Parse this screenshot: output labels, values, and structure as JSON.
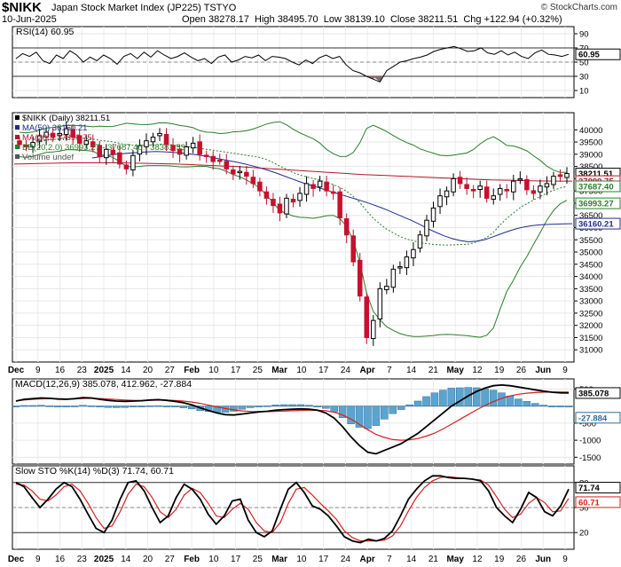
{
  "header": {
    "symbol": "$NIKK",
    "name": "Japan Stock Market Index (JP225)  TSTYO",
    "date": "10-Jun-2025",
    "credit": "© StockCharts.com",
    "open_label": "Open",
    "open": "38278.17",
    "high_label": "High",
    "high": "38495.70",
    "low_label": "Low",
    "low": "38139.10",
    "close_label": "Close",
    "close": "38211.51",
    "chg_label": "Chg",
    "chg": "+122.94 (+0.32%)"
  },
  "chart_data": [
    {
      "type": "line",
      "panel": "rsi",
      "legend": "RSI(14) 60.95",
      "ylim": [
        0,
        100
      ],
      "yticks": [
        10,
        30,
        50,
        70,
        90
      ],
      "reference_lines": [
        30,
        50,
        70
      ],
      "last_value_label": "60.95",
      "series": [
        {
          "name": "RSI(14)",
          "values": [
            55,
            62,
            58,
            64,
            52,
            48,
            60,
            55,
            66,
            60,
            50,
            57,
            52,
            60,
            55,
            47,
            58,
            62,
            55,
            64,
            57,
            66,
            60,
            55,
            58,
            63,
            57,
            52,
            55,
            48,
            57,
            60,
            50,
            53,
            58,
            56,
            60,
            52,
            58,
            57,
            55,
            50,
            46,
            53,
            48,
            56,
            60,
            55,
            58,
            46,
            38,
            35,
            30,
            26,
            22,
            38,
            44,
            50,
            52,
            55,
            57,
            60,
            65,
            68,
            70,
            72,
            69,
            65,
            66,
            70,
            63,
            61,
            66,
            60,
            64,
            58,
            55,
            63,
            67,
            61,
            60,
            58,
            61
          ]
        }
      ]
    },
    {
      "type": "candlestick",
      "panel": "price",
      "title": "$NIKK (Daily) 38211.51",
      "ylim": [
        30500,
        40700
      ],
      "yticks": [
        31000,
        31500,
        32000,
        32500,
        33000,
        33500,
        34000,
        34500,
        35000,
        35500,
        36000,
        36500,
        37000,
        37500,
        38000,
        38500,
        39000,
        39500,
        40000
      ],
      "x_labels": [
        "Dec",
        "9",
        "16",
        "23",
        "2025",
        "14",
        "20",
        "27",
        "Feb",
        "10",
        "17",
        "25",
        "Mar",
        "10",
        "17",
        "24",
        "Apr",
        "7",
        "14",
        "21",
        "May",
        "12",
        "19",
        "26",
        "Jun",
        "9"
      ],
      "legend": [
        {
          "label": "$NIKK (Daily) 38211.51",
          "color": "#000000"
        },
        {
          "label": "MA(50) 36160.21",
          "color": "#1f2d8c"
        },
        {
          "label": "MA(200) 37899.75",
          "color": "#b3162b"
        },
        {
          "label": "BB(20,2.0) 36993.27 - 37687.40 - 38381.53",
          "color": "#2a7d2a"
        },
        {
          "label": "Volume undef",
          "color": "#555555"
        }
      ],
      "right_labels": [
        {
          "value": 38211.51,
          "label": "38211.51",
          "color": "#000000"
        },
        {
          "value": 37899.75,
          "label": "37899.75",
          "color": "#b3162b"
        },
        {
          "value": 37687.4,
          "label": "37687.40",
          "color": "#2a7d2a"
        },
        {
          "value": 36993.27,
          "label": "36993.27",
          "color": "#2a7d2a"
        },
        {
          "value": 36160.21,
          "label": "36160.21",
          "color": "#1f2d8c"
        }
      ],
      "close": [
        39400,
        39350,
        39480,
        39750,
        39900,
        39700,
        39850,
        40050,
        39700,
        39450,
        39550,
        39300,
        38900,
        39200,
        39000,
        38600,
        38400,
        38950,
        39350,
        39550,
        39700,
        39850,
        39400,
        39150,
        39000,
        39300,
        39450,
        39000,
        38950,
        38700,
        38750,
        38400,
        38200,
        38300,
        38100,
        37800,
        37500,
        37200,
        36900,
        36600,
        37200,
        37050,
        37400,
        37800,
        37600,
        37900,
        37500,
        37400,
        36400,
        35700,
        34600,
        33200,
        31500,
        32200,
        33500,
        33600,
        34300,
        34400,
        34800,
        35100,
        35700,
        36300,
        36800,
        37300,
        37500,
        38000,
        37800,
        37600,
        37500,
        37700,
        37200,
        37300,
        37600,
        37500,
        37900,
        38000,
        37550,
        37400,
        37700,
        37800,
        38100,
        38090,
        38211
      ],
      "ma50": [
        38850,
        38900,
        38950,
        39000,
        39030,
        39060,
        39080,
        39100,
        39110,
        39100,
        39080,
        39060,
        39020,
        38980,
        38930,
        38870,
        38800,
        38740,
        38680,
        38610,
        38530,
        38440,
        38340,
        38230,
        38110,
        37990,
        37870,
        37760,
        37660,
        37560,
        37460,
        37360,
        37260,
        37160,
        37060,
        36950,
        36830,
        36700,
        36560,
        36420,
        36280,
        36120,
        35950,
        35800,
        35660,
        35550,
        35470,
        35420,
        35440,
        35500,
        35610,
        35730,
        35850,
        35950,
        36030,
        36080,
        36110,
        36130,
        36140,
        36150,
        36160
      ],
      "ma200": [
        38600,
        38610,
        38620,
        38630,
        38640,
        38650,
        38650,
        38650,
        38650,
        38650,
        38640,
        38630,
        38620,
        38610,
        38600,
        38580,
        38560,
        38540,
        38520,
        38500,
        38470,
        38440,
        38410,
        38380,
        38350,
        38320,
        38290,
        38260,
        38230,
        38200,
        38170,
        38150,
        38130,
        38110,
        38090,
        38070,
        38050,
        38030,
        38010,
        37990,
        37970,
        37950,
        37940,
        37930,
        37920,
        37910,
        37905,
        37900,
        37900
      ]
    },
    {
      "type": "line",
      "panel": "macd",
      "legend": "MACD(12,26,9) 385.078, 412.962, -27.884",
      "ylim": [
        -1700,
        800
      ],
      "yticks": [
        -1500,
        -1000,
        -500,
        500
      ],
      "last_value_labels": [
        "385.078",
        "-27.884"
      ],
      "series": [
        {
          "name": "MACD",
          "values": [
            150,
            200,
            220,
            240,
            230,
            210,
            200,
            220,
            250,
            240,
            200,
            170,
            150,
            140,
            150,
            160,
            180,
            190,
            170,
            140,
            100,
            40,
            -50,
            -130,
            -200,
            -250,
            -260,
            -230,
            -200,
            -170,
            -150,
            -120,
            -100,
            -90,
            -80,
            -90,
            -120,
            -200,
            -350,
            -600,
            -900,
            -1150,
            -1350,
            -1400,
            -1300,
            -1200,
            -1100,
            -950,
            -800,
            -600,
            -400,
            -200,
            0,
            150,
            300,
            430,
            530,
            600,
            620,
            600,
            560,
            520,
            480,
            440,
            410,
            390,
            385
          ]
        },
        {
          "name": "Signal",
          "values": [
            160,
            180,
            200,
            215,
            220,
            220,
            215,
            215,
            225,
            230,
            225,
            210,
            195,
            180,
            170,
            165,
            170,
            175,
            175,
            165,
            150,
            120,
            80,
            30,
            -20,
            -70,
            -110,
            -140,
            -155,
            -160,
            -160,
            -155,
            -145,
            -135,
            -125,
            -118,
            -118,
            -135,
            -180,
            -260,
            -380,
            -530,
            -690,
            -830,
            -920,
            -980,
            -1000,
            -990,
            -950,
            -880,
            -790,
            -670,
            -530,
            -390,
            -250,
            -110,
            20,
            130,
            230,
            300,
            350,
            380,
            400,
            410,
            412,
            413,
            413
          ]
        }
      ]
    },
    {
      "type": "line",
      "panel": "sto",
      "legend": "Slow STO %K(14) %D(3) 71.74, 60.71",
      "ylim": [
        0,
        100
      ],
      "yticks": [
        20,
        50,
        80
      ],
      "last_value_labels": [
        "71.74",
        "60.71"
      ],
      "series": [
        {
          "name": "%K",
          "values": [
            80,
            75,
            62,
            50,
            60,
            72,
            80,
            75,
            60,
            42,
            25,
            20,
            35,
            60,
            80,
            82,
            70,
            50,
            32,
            40,
            62,
            78,
            72,
            60,
            42,
            30,
            40,
            58,
            60,
            35,
            20,
            15,
            22,
            48,
            72,
            80,
            68,
            52,
            48,
            40,
            28,
            15,
            10,
            8,
            12,
            10,
            13,
            22,
            40,
            60,
            72,
            82,
            88,
            88,
            86,
            85,
            85,
            84,
            82,
            70,
            50,
            40,
            32,
            48,
            68,
            62,
            45,
            40,
            52,
            72
          ]
        },
        {
          "name": "%D",
          "values": [
            78,
            77,
            70,
            60,
            58,
            65,
            75,
            78,
            70,
            55,
            38,
            25,
            28,
            45,
            66,
            78,
            75,
            62,
            45,
            38,
            48,
            65,
            73,
            68,
            55,
            40,
            38,
            48,
            55,
            48,
            32,
            22,
            20,
            32,
            55,
            72,
            74,
            65,
            55,
            46,
            36,
            22,
            14,
            10,
            10,
            10,
            11,
            16,
            28,
            46,
            62,
            74,
            82,
            86,
            87,
            86,
            85,
            84,
            83,
            77,
            63,
            48,
            38,
            42,
            55,
            62,
            56,
            45,
            46,
            61
          ]
        }
      ]
    }
  ]
}
